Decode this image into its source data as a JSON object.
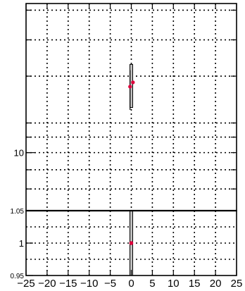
{
  "chart_data": [
    {
      "type": "scatter",
      "panel": "top",
      "xlim": [
        -25,
        25
      ],
      "y_scale": "log",
      "ylim": [
        7,
        25
      ],
      "y_tick_labels": [
        {
          "value": 10,
          "label": "10"
        }
      ],
      "y_minor_ticks": [
        8,
        9,
        10,
        11,
        12,
        16,
        20,
        24
      ],
      "grid": true,
      "bands": [
        {
          "x": 0,
          "y_low": 13.2,
          "y_high": 17.2
        }
      ],
      "points": [
        {
          "x": -0.3,
          "y": 15.0,
          "y_err": [
            13.0,
            16.6
          ],
          "color": "#e0003c"
        },
        {
          "x": 0.4,
          "y": 15.4,
          "color": "#e0003c"
        }
      ],
      "colors": {
        "point": "#e0003c",
        "band": "#bfbfbf",
        "frame": "#000000"
      }
    },
    {
      "type": "scatter",
      "panel": "ratio",
      "xlim": [
        -25,
        25
      ],
      "ylim": [
        0.95,
        1.05
      ],
      "y_tick_labels": [
        {
          "value": 0.95,
          "label": "0.95"
        },
        {
          "value": 1,
          "label": "1"
        },
        {
          "value": 1.05,
          "label": "1.05"
        }
      ],
      "x_tick_labels": [
        "−25",
        "−20",
        "−15",
        "−10",
        "−5",
        "0",
        "5",
        "10",
        "15",
        "20",
        "25"
      ],
      "x_ticks": [
        -25,
        -20,
        -15,
        -10,
        -5,
        0,
        5,
        10,
        15,
        20,
        25
      ],
      "grid": true,
      "bands": [
        {
          "x": 0,
          "y_low": 0.95,
          "y_high": 1.05
        }
      ],
      "points": [
        {
          "x": 0,
          "y": 1,
          "color": "#e0003c"
        }
      ],
      "colors": {
        "point": "#e0003c",
        "band": "#bfbfbf",
        "frame": "#000000"
      }
    }
  ]
}
